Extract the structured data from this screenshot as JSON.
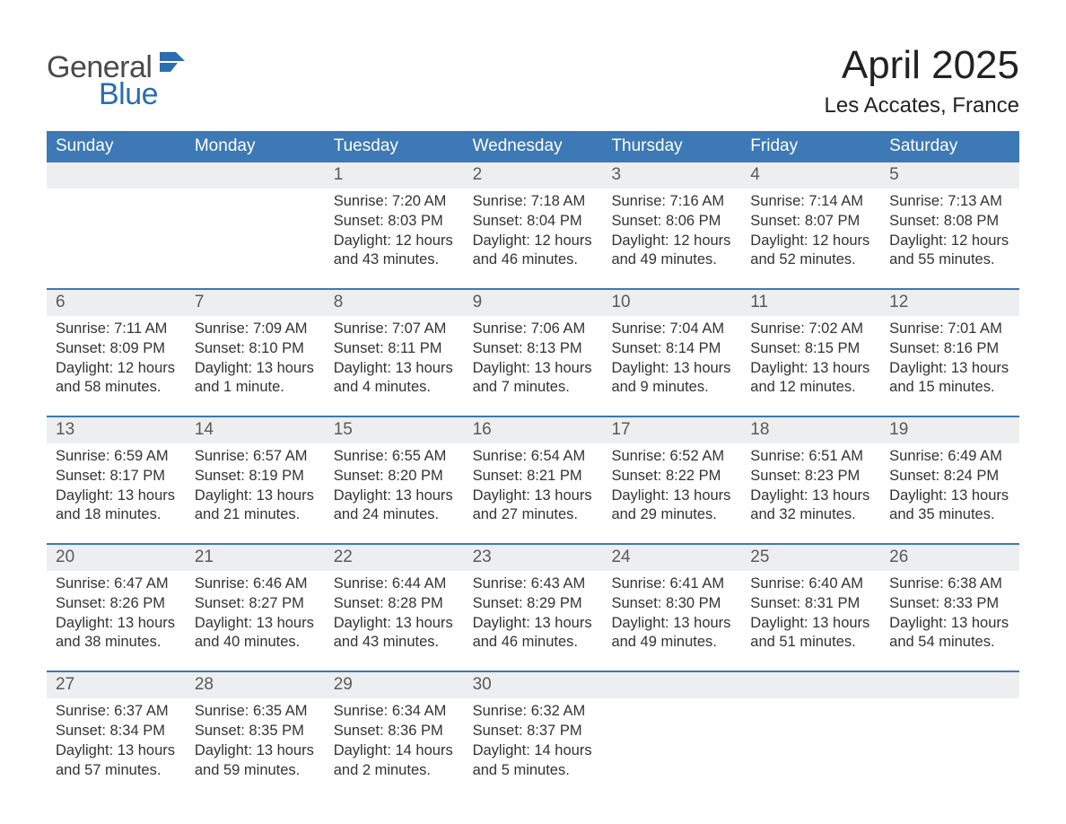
{
  "brand": {
    "text_general": "General",
    "text_blue": "Blue",
    "logo_fill": "#2a6db0",
    "text_color_general": "#4a4a4a",
    "text_color_blue": "#2a6db0"
  },
  "header": {
    "title": "April 2025",
    "location": "Les Accates, France",
    "title_fontsize": 44,
    "location_fontsize": 24,
    "title_color": "#222222"
  },
  "calendar": {
    "header_bg": "#3c79b5",
    "header_text_color": "#ffffff",
    "daynum_bg": "#eceeef",
    "daynum_color": "#5a5a5a",
    "week_border_color": "#3c79b5",
    "cell_text_color": "#333333",
    "days_of_week": [
      "Sunday",
      "Monday",
      "Tuesday",
      "Wednesday",
      "Thursday",
      "Friday",
      "Saturday"
    ],
    "weeks": [
      {
        "cells": [
          {
            "num": "",
            "lines": []
          },
          {
            "num": "",
            "lines": []
          },
          {
            "num": "1",
            "lines": [
              "Sunrise: 7:20 AM",
              "Sunset: 8:03 PM",
              "Daylight: 12 hours",
              "and 43 minutes."
            ]
          },
          {
            "num": "2",
            "lines": [
              "Sunrise: 7:18 AM",
              "Sunset: 8:04 PM",
              "Daylight: 12 hours",
              "and 46 minutes."
            ]
          },
          {
            "num": "3",
            "lines": [
              "Sunrise: 7:16 AM",
              "Sunset: 8:06 PM",
              "Daylight: 12 hours",
              "and 49 minutes."
            ]
          },
          {
            "num": "4",
            "lines": [
              "Sunrise: 7:14 AM",
              "Sunset: 8:07 PM",
              "Daylight: 12 hours",
              "and 52 minutes."
            ]
          },
          {
            "num": "5",
            "lines": [
              "Sunrise: 7:13 AM",
              "Sunset: 8:08 PM",
              "Daylight: 12 hours",
              "and 55 minutes."
            ]
          }
        ]
      },
      {
        "cells": [
          {
            "num": "6",
            "lines": [
              "Sunrise: 7:11 AM",
              "Sunset: 8:09 PM",
              "Daylight: 12 hours",
              "and 58 minutes."
            ]
          },
          {
            "num": "7",
            "lines": [
              "Sunrise: 7:09 AM",
              "Sunset: 8:10 PM",
              "Daylight: 13 hours",
              "and 1 minute."
            ]
          },
          {
            "num": "8",
            "lines": [
              "Sunrise: 7:07 AM",
              "Sunset: 8:11 PM",
              "Daylight: 13 hours",
              "and 4 minutes."
            ]
          },
          {
            "num": "9",
            "lines": [
              "Sunrise: 7:06 AM",
              "Sunset: 8:13 PM",
              "Daylight: 13 hours",
              "and 7 minutes."
            ]
          },
          {
            "num": "10",
            "lines": [
              "Sunrise: 7:04 AM",
              "Sunset: 8:14 PM",
              "Daylight: 13 hours",
              "and 9 minutes."
            ]
          },
          {
            "num": "11",
            "lines": [
              "Sunrise: 7:02 AM",
              "Sunset: 8:15 PM",
              "Daylight: 13 hours",
              "and 12 minutes."
            ]
          },
          {
            "num": "12",
            "lines": [
              "Sunrise: 7:01 AM",
              "Sunset: 8:16 PM",
              "Daylight: 13 hours",
              "and 15 minutes."
            ]
          }
        ]
      },
      {
        "cells": [
          {
            "num": "13",
            "lines": [
              "Sunrise: 6:59 AM",
              "Sunset: 8:17 PM",
              "Daylight: 13 hours",
              "and 18 minutes."
            ]
          },
          {
            "num": "14",
            "lines": [
              "Sunrise: 6:57 AM",
              "Sunset: 8:19 PM",
              "Daylight: 13 hours",
              "and 21 minutes."
            ]
          },
          {
            "num": "15",
            "lines": [
              "Sunrise: 6:55 AM",
              "Sunset: 8:20 PM",
              "Daylight: 13 hours",
              "and 24 minutes."
            ]
          },
          {
            "num": "16",
            "lines": [
              "Sunrise: 6:54 AM",
              "Sunset: 8:21 PM",
              "Daylight: 13 hours",
              "and 27 minutes."
            ]
          },
          {
            "num": "17",
            "lines": [
              "Sunrise: 6:52 AM",
              "Sunset: 8:22 PM",
              "Daylight: 13 hours",
              "and 29 minutes."
            ]
          },
          {
            "num": "18",
            "lines": [
              "Sunrise: 6:51 AM",
              "Sunset: 8:23 PM",
              "Daylight: 13 hours",
              "and 32 minutes."
            ]
          },
          {
            "num": "19",
            "lines": [
              "Sunrise: 6:49 AM",
              "Sunset: 8:24 PM",
              "Daylight: 13 hours",
              "and 35 minutes."
            ]
          }
        ]
      },
      {
        "cells": [
          {
            "num": "20",
            "lines": [
              "Sunrise: 6:47 AM",
              "Sunset: 8:26 PM",
              "Daylight: 13 hours",
              "and 38 minutes."
            ]
          },
          {
            "num": "21",
            "lines": [
              "Sunrise: 6:46 AM",
              "Sunset: 8:27 PM",
              "Daylight: 13 hours",
              "and 40 minutes."
            ]
          },
          {
            "num": "22",
            "lines": [
              "Sunrise: 6:44 AM",
              "Sunset: 8:28 PM",
              "Daylight: 13 hours",
              "and 43 minutes."
            ]
          },
          {
            "num": "23",
            "lines": [
              "Sunrise: 6:43 AM",
              "Sunset: 8:29 PM",
              "Daylight: 13 hours",
              "and 46 minutes."
            ]
          },
          {
            "num": "24",
            "lines": [
              "Sunrise: 6:41 AM",
              "Sunset: 8:30 PM",
              "Daylight: 13 hours",
              "and 49 minutes."
            ]
          },
          {
            "num": "25",
            "lines": [
              "Sunrise: 6:40 AM",
              "Sunset: 8:31 PM",
              "Daylight: 13 hours",
              "and 51 minutes."
            ]
          },
          {
            "num": "26",
            "lines": [
              "Sunrise: 6:38 AM",
              "Sunset: 8:33 PM",
              "Daylight: 13 hours",
              "and 54 minutes."
            ]
          }
        ]
      },
      {
        "cells": [
          {
            "num": "27",
            "lines": [
              "Sunrise: 6:37 AM",
              "Sunset: 8:34 PM",
              "Daylight: 13 hours",
              "and 57 minutes."
            ]
          },
          {
            "num": "28",
            "lines": [
              "Sunrise: 6:35 AM",
              "Sunset: 8:35 PM",
              "Daylight: 13 hours",
              "and 59 minutes."
            ]
          },
          {
            "num": "29",
            "lines": [
              "Sunrise: 6:34 AM",
              "Sunset: 8:36 PM",
              "Daylight: 14 hours",
              "and 2 minutes."
            ]
          },
          {
            "num": "30",
            "lines": [
              "Sunrise: 6:32 AM",
              "Sunset: 8:37 PM",
              "Daylight: 14 hours",
              "and 5 minutes."
            ]
          },
          {
            "num": "",
            "lines": []
          },
          {
            "num": "",
            "lines": []
          },
          {
            "num": "",
            "lines": []
          }
        ]
      }
    ]
  }
}
